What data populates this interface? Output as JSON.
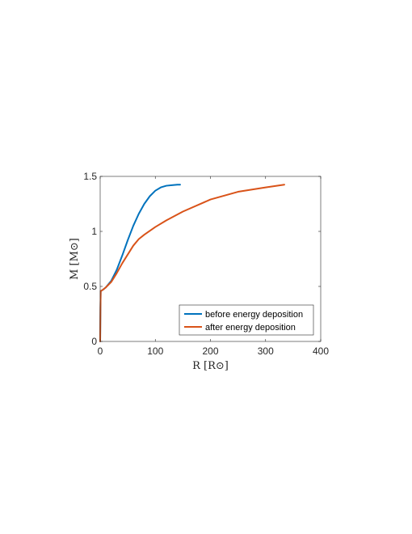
{
  "chart_data": {
    "type": "line",
    "xlabel": "R [R⊙]",
    "ylabel": "M [M⊙]",
    "xlim": [
      0,
      400
    ],
    "ylim": [
      0,
      1.5
    ],
    "xticks": [
      0,
      100,
      200,
      300,
      400
    ],
    "yticks": [
      0,
      0.5,
      1,
      1.5
    ],
    "xtick_labels": [
      "0",
      "100",
      "200",
      "300",
      "400"
    ],
    "ytick_labels": [
      "0",
      "0.5",
      "1",
      "1.5"
    ],
    "grid": false,
    "legend_position": "bottom-right",
    "series": [
      {
        "name": "before energy deposition",
        "color": "#0072BD",
        "x": [
          0,
          0.5,
          1,
          2,
          5,
          10,
          20,
          30,
          40,
          50,
          60,
          70,
          80,
          90,
          100,
          110,
          120,
          130,
          140,
          145
        ],
        "y": [
          0,
          0.3,
          0.46,
          0.46,
          0.47,
          0.49,
          0.55,
          0.65,
          0.78,
          0.92,
          1.05,
          1.16,
          1.25,
          1.32,
          1.37,
          1.4,
          1.415,
          1.42,
          1.425,
          1.425
        ]
      },
      {
        "name": "after energy deposition",
        "color": "#D95319",
        "x": [
          0,
          0.5,
          1,
          2,
          5,
          10,
          20,
          30,
          40,
          50,
          60,
          70,
          80,
          100,
          120,
          150,
          200,
          250,
          300,
          334
        ],
        "y": [
          0,
          0.3,
          0.46,
          0.46,
          0.47,
          0.49,
          0.54,
          0.62,
          0.71,
          0.79,
          0.87,
          0.93,
          0.97,
          1.04,
          1.1,
          1.18,
          1.29,
          1.36,
          1.4,
          1.425
        ]
      }
    ]
  }
}
